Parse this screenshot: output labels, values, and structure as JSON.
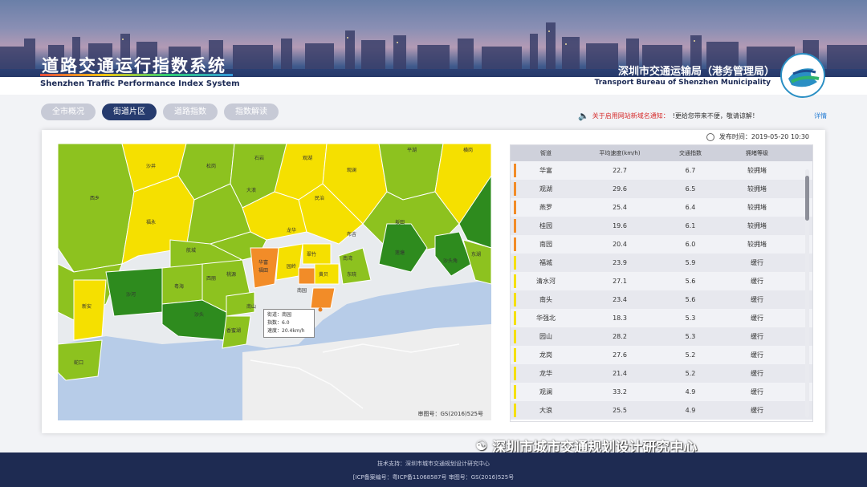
{
  "header": {
    "title_cn": "道路交通运行指数系统",
    "title_en": "Shenzhen Traffic Performance Index System",
    "bureau_cn": "深圳市交通运输局（港务管理局）",
    "bureau_en": "Transport Bureau of Shenzhen Municipality"
  },
  "tabs": [
    {
      "label": "全市概况",
      "active": false
    },
    {
      "label": "街道片区",
      "active": true
    },
    {
      "label": "道路指数",
      "active": false
    },
    {
      "label": "指数解读",
      "active": false
    }
  ],
  "notice": {
    "text": "关于启用网站新域名通知：",
    "rest": "!更给您带来不便，敬请谅解！",
    "detail_link": "详情"
  },
  "publish_time": "发布时间：2019-05-20 10:30",
  "map": {
    "tooltip": {
      "line1": "街道：南园",
      "line2": "指数：6.0",
      "line3": "速度：20.4km/h"
    },
    "credit": "审图号：GS(2016)525号",
    "region_labels": [
      "西乡",
      "福永",
      "沙井",
      "松岗",
      "石岩",
      "观澜",
      "龙华",
      "民治",
      "大浪",
      "观湖",
      "平湖",
      "布吉",
      "南湾",
      "横岗",
      "坂田",
      "新安",
      "航城",
      "西丽",
      "桃源",
      "南山",
      "沙河",
      "粤海",
      "沙头",
      "香蜜湖",
      "福田",
      "华富",
      "南园",
      "园岭",
      "翠竹",
      "黄贝",
      "莲塘",
      "东晓",
      "东湖",
      "沙头角",
      "蛇口"
    ]
  },
  "table": {
    "headers": [
      "街道",
      "平均速度(km/h)",
      "交通指数",
      "拥堵等级"
    ],
    "rows": [
      {
        "street": "华富",
        "speed": "22.7",
        "index": "6.7",
        "level": "较拥堵",
        "color": "#f28c28"
      },
      {
        "street": "观湖",
        "speed": "29.6",
        "index": "6.5",
        "level": "较拥堵",
        "color": "#f28c28"
      },
      {
        "street": "燕罗",
        "speed": "25.4",
        "index": "6.4",
        "level": "较拥堵",
        "color": "#f28c28"
      },
      {
        "street": "桂园",
        "speed": "19.6",
        "index": "6.1",
        "level": "较拥堵",
        "color": "#f28c28"
      },
      {
        "street": "南园",
        "speed": "20.4",
        "index": "6.0",
        "level": "较拥堵",
        "color": "#f28c28"
      },
      {
        "street": "福城",
        "speed": "23.9",
        "index": "5.9",
        "level": "缓行",
        "color": "#f5e000"
      },
      {
        "street": "清水河",
        "speed": "27.1",
        "index": "5.6",
        "level": "缓行",
        "color": "#f5e000"
      },
      {
        "street": "南头",
        "speed": "23.4",
        "index": "5.6",
        "level": "缓行",
        "color": "#f5e000"
      },
      {
        "street": "华强北",
        "speed": "18.3",
        "index": "5.3",
        "level": "缓行",
        "color": "#f5e000"
      },
      {
        "street": "园山",
        "speed": "28.2",
        "index": "5.3",
        "level": "缓行",
        "color": "#f5e000"
      },
      {
        "street": "龙岗",
        "speed": "27.6",
        "index": "5.2",
        "level": "缓行",
        "color": "#f5e000"
      },
      {
        "street": "龙华",
        "speed": "21.4",
        "index": "5.2",
        "level": "缓行",
        "color": "#f5e000"
      },
      {
        "street": "观澜",
        "speed": "33.2",
        "index": "4.9",
        "level": "缓行",
        "color": "#f5e000"
      },
      {
        "street": "大浪",
        "speed": "25.5",
        "index": "4.9",
        "level": "缓行",
        "color": "#f5e000"
      }
    ]
  },
  "watermark": "深圳市城市交通规划设计研究中心",
  "footer": {
    "line1": "技术支持：深圳市城市交通规划设计研究中心",
    "line2": "[ICP备案编号：粤ICP备11068587号      审图号：GS(2016)525号"
  },
  "colors": {
    "smooth": "#2e8b1e",
    "basic": "#8dc21f",
    "light": "#f5e000",
    "moderate": "#f28c28",
    "navy": "#263b6e"
  }
}
